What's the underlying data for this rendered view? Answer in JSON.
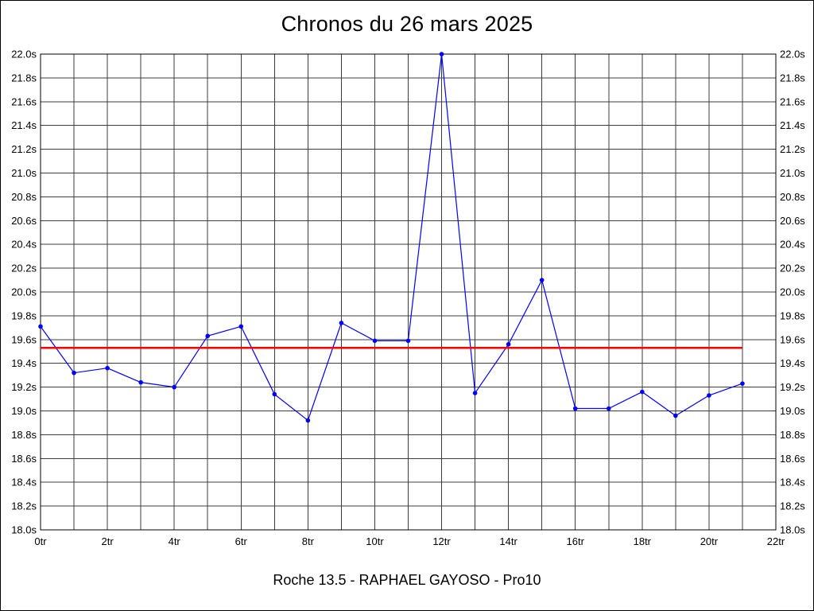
{
  "title": "Chronos du 26 mars 2025",
  "caption": "Roche 13.5 - RAPHAEL GAYOSO - Pro10",
  "chart_data": {
    "type": "line",
    "title": "Chronos du 26 mars 2025",
    "subtitle": "Roche 13.5 - RAPHAEL GAYOSO - Pro10",
    "xlabel": "",
    "ylabel": "",
    "x_unit": "tr",
    "y_unit": "s",
    "xlim": [
      0,
      22
    ],
    "ylim": [
      18.0,
      22.0
    ],
    "x_tick_step": 1,
    "x_label_step": 2,
    "y_tick_step": 0.2,
    "grid": true,
    "grid_color": "#3c3c3c",
    "background_color": "#ffffff",
    "legend_position": "none",
    "series": [
      {
        "name": "lap-times",
        "color": "#0000ff",
        "x": [
          0,
          1,
          2,
          3,
          4,
          5,
          6,
          7,
          8,
          9,
          10,
          11,
          12,
          13,
          14,
          15,
          16,
          17,
          18,
          19,
          20,
          21
        ],
        "values": [
          19.71,
          19.32,
          19.36,
          19.24,
          19.2,
          19.63,
          19.71,
          19.14,
          18.92,
          19.74,
          19.59,
          19.59,
          22.0,
          19.15,
          19.56,
          20.1,
          19.02,
          19.02,
          19.16,
          18.96,
          19.13,
          19.23
        ]
      }
    ],
    "reference_line": {
      "name": "average-time",
      "color": "#ff0000",
      "value": 19.53,
      "x_start": 0,
      "x_end": 21
    }
  }
}
